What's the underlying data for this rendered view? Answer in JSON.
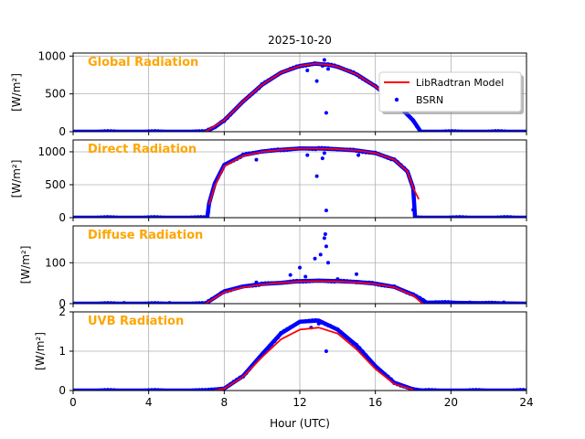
{
  "title": "2025-10-20",
  "xlabel": "Hour (UTC)",
  "x_ticks": [
    "0",
    "4",
    "8",
    "12",
    "16",
    "20",
    "24"
  ],
  "x_tick_values": [
    0,
    4,
    8,
    12,
    16,
    20,
    24
  ],
  "xlim": [
    0,
    24
  ],
  "legend": {
    "placement": "upper-right of first panel",
    "items": [
      {
        "label": "LibRadtran Model",
        "color": "#ff0000",
        "kind": "line"
      },
      {
        "label": "BSRN",
        "color": "#0000ff",
        "kind": "marker"
      }
    ]
  },
  "colors": {
    "model": "#ff0000",
    "bsrn": "#0000ff",
    "panel_title": "#ffa500",
    "grid": "#b0b0b0"
  },
  "chart_data": [
    {
      "type": "line",
      "title": "Global Radiation",
      "ylabel": "[W/m²]",
      "ylim": [
        0,
        1040
      ],
      "yticks": [
        0,
        500,
        1000
      ],
      "grid": true,
      "series": [
        {
          "name": "LibRadtran Model",
          "color": "#ff0000",
          "x": [
            7,
            8,
            9,
            10,
            11,
            12,
            12.8,
            13.5,
            14,
            15,
            16,
            17,
            17.5
          ],
          "y": [
            0,
            150,
            400,
            620,
            780,
            870,
            900,
            885,
            860,
            760,
            600,
            400,
            300
          ]
        },
        {
          "name": "BSRN",
          "color": "#0000ff",
          "x": [
            0,
            7,
            7.5,
            8,
            9,
            10,
            11,
            12,
            12.8,
            13.5,
            14,
            15,
            16,
            17,
            18,
            18.4,
            24
          ],
          "y": [
            0,
            0,
            60,
            150,
            400,
            620,
            780,
            870,
            900,
            885,
            860,
            760,
            600,
            400,
            150,
            0,
            0
          ],
          "outliers": [
            [
              12.4,
              810
            ],
            [
              12.9,
              670
            ],
            [
              13.2,
              870
            ],
            [
              13.3,
              950
            ],
            [
              13.4,
              250
            ],
            [
              13.5,
              830
            ]
          ]
        }
      ]
    },
    {
      "type": "line",
      "title": "Direct Radiation",
      "ylabel": "[W/m²]",
      "ylim": [
        0,
        1180
      ],
      "yticks": [
        0,
        500,
        1000
      ],
      "grid": true,
      "series": [
        {
          "name": "LibRadtran Model",
          "color": "#ff0000",
          "x": [
            7.2,
            7.5,
            8,
            9,
            10,
            11,
            12,
            13,
            14,
            15,
            16,
            17,
            17.7,
            18,
            18.3
          ],
          "y": [
            200,
            480,
            780,
            940,
            1000,
            1030,
            1050,
            1050,
            1040,
            1020,
            980,
            880,
            700,
            450,
            280
          ]
        },
        {
          "name": "BSRN",
          "color": "#0000ff",
          "x": [
            0,
            7.1,
            7.2,
            7.5,
            8,
            9,
            10,
            11,
            12,
            13,
            14,
            15,
            16,
            17,
            17.7,
            18,
            18.1,
            24
          ],
          "y": [
            0,
            0,
            220,
            520,
            800,
            950,
            1005,
            1030,
            1050,
            1050,
            1040,
            1020,
            980,
            880,
            700,
            450,
            0,
            0
          ],
          "outliers": [
            [
              7.15,
              80
            ],
            [
              9.7,
              880
            ],
            [
              12.4,
              950
            ],
            [
              12.9,
              630
            ],
            [
              13.2,
              900
            ],
            [
              13.3,
              980
            ],
            [
              13.4,
              110
            ],
            [
              15.1,
              950
            ],
            [
              18.0,
              120
            ]
          ]
        }
      ]
    },
    {
      "type": "line",
      "title": "Diffuse Radiation",
      "ylabel": "[W/m²]",
      "ylim": [
        0,
        190
      ],
      "yticks": [
        0,
        100
      ],
      "grid": true,
      "series": [
        {
          "name": "LibRadtran Model",
          "color": "#ff0000",
          "x": [
            7,
            8,
            9,
            10,
            11,
            12,
            13,
            14,
            15,
            16,
            17,
            18,
            18.5
          ],
          "y": [
            0,
            28,
            40,
            47,
            51,
            54,
            55,
            54,
            52,
            48,
            40,
            20,
            0
          ]
        },
        {
          "name": "BSRN",
          "color": "#0000ff",
          "x": [
            0,
            7,
            7.5,
            8,
            9,
            10,
            11,
            12,
            13,
            14,
            15,
            16,
            17,
            18,
            18.7,
            24
          ],
          "y": [
            0,
            0,
            15,
            30,
            42,
            48,
            51,
            55,
            56,
            55,
            53,
            49,
            41,
            22,
            3,
            0
          ],
          "outliers": [
            [
              2.7,
              2
            ],
            [
              5.1,
              2
            ],
            [
              9.7,
              52
            ],
            [
              11.5,
              70
            ],
            [
              12.0,
              88
            ],
            [
              12.3,
              66
            ],
            [
              12.8,
              110
            ],
            [
              13.1,
              120
            ],
            [
              13.3,
              160
            ],
            [
              13.35,
              170
            ],
            [
              13.4,
              140
            ],
            [
              13.5,
              100
            ],
            [
              14.0,
              60
            ],
            [
              15.0,
              72
            ],
            [
              19.2,
              4
            ],
            [
              21.0,
              3
            ],
            [
              22.8,
              3
            ]
          ]
        }
      ]
    },
    {
      "type": "line",
      "title": "UVB Radiation",
      "ylabel": "[W/m²]",
      "ylim": [
        0,
        2
      ],
      "yticks": [
        0,
        1,
        2
      ],
      "grid": true,
      "series": [
        {
          "name": "LibRadtran Model",
          "color": "#ff0000",
          "x": [
            7.5,
            8,
            9,
            10,
            11,
            12,
            13,
            14,
            15,
            16,
            17,
            18
          ],
          "y": [
            0,
            0.05,
            0.35,
            0.85,
            1.3,
            1.55,
            1.6,
            1.45,
            1.05,
            0.55,
            0.17,
            0.02
          ]
        },
        {
          "name": "BSRN",
          "color": "#0000ff",
          "x": [
            0,
            7,
            8,
            9,
            10,
            11,
            12,
            13,
            14,
            15,
            16,
            17,
            18,
            18.5,
            24
          ],
          "y": [
            0,
            0,
            0.05,
            0.37,
            0.92,
            1.45,
            1.75,
            1.78,
            1.55,
            1.15,
            0.62,
            0.2,
            0.03,
            0,
            0
          ],
          "outliers": [
            [
              12.6,
              1.6
            ],
            [
              13.0,
              1.7
            ],
            [
              13.4,
              1.0
            ],
            [
              13.6,
              1.65
            ]
          ]
        }
      ]
    }
  ]
}
